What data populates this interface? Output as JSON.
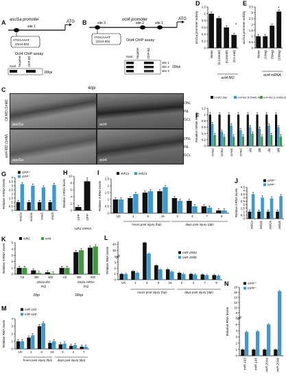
{
  "panelA": {
    "letter": "A",
    "promoter": "ascl1a promoter",
    "site": "site 1",
    "atg": "ATG",
    "bs1": "ATGCAAAT",
    "bs2": "(Oct4-BS)",
    "assay": "Oct4 ChIP assay",
    "lanes": [
      "Input",
      "Negative",
      "ChIP-BS"
    ],
    "time": "16hpi"
  },
  "panelB": {
    "letter": "B",
    "promoter": "oct4 promoter",
    "sites": [
      "site 3",
      "site 2",
      "site 1"
    ],
    "atg": "ATG",
    "bs1": "ATGCAAAT",
    "bs2": "(Oct4-BS)",
    "assay": "Oct4 ChIP assay",
    "lanes": [
      "Input",
      "Negative",
      "ChIP-BS"
    ],
    "right_labels": [
      "site 1",
      "site 2",
      "site 3"
    ],
    "time": "16hpi"
  },
  "panelC": {
    "letter": "C",
    "time": "4dpi",
    "rows": [
      "Ctl MO (1mM)",
      "oct4 MO (1mM)"
    ],
    "images": [
      [
        "ascl1a",
        "oct4"
      ],
      [
        "ascl1a",
        "oct4"
      ]
    ],
    "layers": [
      "ONL",
      "INL",
      "GCL"
    ]
  },
  "panelD": {
    "letter": "D",
    "ylabel": "ascl1a promoter activity",
    "xtitle": "oct4 MO",
    "chart_data": {
      "type": "bar",
      "categories": [
        "Water",
        "(0.125mM)",
        "(0.25mM)",
        "(0.5 mM)"
      ],
      "values": [
        1.0,
        0.87,
        0.6,
        0.38
      ],
      "ylim": [
        0,
        1.2
      ],
      "yticks": [
        "0",
        "0.2",
        "0.4",
        "0.6",
        "0.8",
        "1",
        "1.2"
      ]
    }
  },
  "panelE": {
    "letter": "E",
    "ylabel": "ascl1a promoter activity",
    "xtitle": "oct4 mRNA",
    "chart_data": {
      "type": "bar",
      "categories": [
        "Water",
        "(10ng)",
        "(50ng)",
        "(100ng)"
      ],
      "values": [
        1.0,
        1.0,
        1.9,
        3.1
      ],
      "ylim": [
        0,
        3.5
      ],
      "yticks": [
        "0",
        "0.5",
        "1",
        "1.5",
        "2",
        "2.5",
        "3",
        "3.5"
      ]
    }
  },
  "panelF": {
    "letter": "F",
    "ylabel": "Relative mRNA levels",
    "legend": [
      "Ctl MO-2dpi",
      "oct4 MO (0.5mM)-2dpi",
      "oct4 MO (1.0mM)-2dpi"
    ],
    "chart_data": {
      "type": "bar",
      "categories": [
        "ccna1",
        "ccnb1",
        "ccnd1",
        "ccne1",
        "dla",
        "dlb",
        "dlc",
        "dld"
      ],
      "series": [
        {
          "name": "Ctl MO-2dpi",
          "values": [
            1,
            1,
            1,
            1,
            1,
            1,
            1,
            1
          ]
        },
        {
          "name": "oct4 MO (0.5mM)-2dpi",
          "values": [
            0.7,
            0.45,
            0.65,
            0.5,
            0.6,
            0.55,
            0.65,
            0.6
          ]
        },
        {
          "name": "oct4 MO (1.0mM)-2dpi",
          "values": [
            0.35,
            0.3,
            0.3,
            0.3,
            0.4,
            0.3,
            0.35,
            0.3
          ]
        }
      ],
      "ylim": [
        0,
        1.2
      ],
      "yticks": [
        "0",
        "0.2",
        "0.4",
        "0.6",
        "0.8",
        "1",
        "1.2"
      ]
    }
  },
  "panelG": {
    "letter": "G",
    "ylabel": "Relative mRNA levels",
    "legend": [
      "GFP⁺",
      "GFP⁻"
    ],
    "chart_data": {
      "type": "bar",
      "categories": [
        "snai1a",
        "snai1b",
        "snai2",
        "snai3"
      ],
      "series": [
        {
          "name": "GFP⁺",
          "values": [
            1,
            1,
            1,
            1
          ]
        },
        {
          "name": "GFP⁻",
          "values": [
            3.2,
            3.0,
            2.8,
            3.1
          ]
        }
      ],
      "ylim": [
        0,
        4
      ],
      "yticks": [
        "0",
        "0.5",
        "1",
        "1.5",
        "2",
        "2.5",
        "3",
        "3.5",
        "4"
      ]
    }
  },
  "panelH": {
    "letter": "H",
    "ylabel": "Relative mRNA levels",
    "xtitle": "cdh1 mRNA",
    "chart_data": {
      "type": "bar",
      "categories": [
        "GFP⁻",
        "GFP⁺"
      ],
      "values": [
        1,
        8.5
      ],
      "ylim": [
        0,
        10
      ],
      "yticks": [
        "0",
        "2",
        "4",
        "6",
        "8",
        "10"
      ]
    }
  },
  "panelI": {
    "letter": "I",
    "ylabel": "Relative mRNA levels",
    "legend": [
      "zeb1a",
      "zeb2a"
    ],
    "xgroups": [
      "hours post injury (hpi)",
      "days post injury (dpi)"
    ],
    "chart_data": {
      "type": "bar",
      "categories": [
        "UC",
        "1",
        "6",
        "16",
        "2",
        "4",
        "7",
        "9"
      ],
      "series": [
        {
          "name": "zeb1a",
          "values": [
            1,
            1.1,
            1.5,
            1.6,
            1.1,
            0.9,
            0.5,
            0.2
          ]
        },
        {
          "name": "zeb2a",
          "values": [
            1,
            1.4,
            1.6,
            1.9,
            0.9,
            0.5,
            0.4,
            0.2
          ]
        }
      ],
      "ylim": [
        0,
        2.5
      ],
      "yticks": [
        "0",
        "0.5",
        "1",
        "1.5",
        "2",
        "2.5"
      ]
    }
  },
  "panelJ": {
    "letter": "J",
    "ylabel": "Relative mRNA levels",
    "legend": [
      "GFP⁺",
      "GFP⁻"
    ],
    "chart_data": {
      "type": "bar",
      "categories": [
        "zeb1a",
        "zeb1b",
        "zeb2a",
        "zeb2b"
      ],
      "series": [
        {
          "name": "GFP⁺",
          "values": [
            1,
            1,
            1,
            1
          ]
        },
        {
          "name": "GFP⁻",
          "values": [
            3.5,
            3.0,
            2.9,
            3.2
          ]
        }
      ],
      "ylim": [
        0,
        4.5
      ],
      "yticks": [
        "0",
        "0.5",
        "1",
        "1.5",
        "2",
        "2.5",
        "3",
        "3.5",
        "4",
        "4.5"
      ]
    }
  },
  "panelK": {
    "letter": "K",
    "ylabel": "Relative mRNA levels",
    "legend": [
      "cdh1",
      "oct4"
    ],
    "xlabels": [
      "Ctl",
      "zeb2a MO",
      "Ctl",
      "zeb2a mRNA"
    ],
    "dose_labels": [
      "300",
      "600",
      "300",
      "600"
    ],
    "dose_unit": "(ng)",
    "times": [
      "2dpi",
      "16hpi"
    ],
    "chart_data": {
      "type": "bar",
      "categories": [
        "2dpi Ctl",
        "2dpi zeb2a MO 300",
        "2dpi zeb2a MO 600",
        "16hpi Ctl",
        "16hpi zeb2a mRNA 300",
        "16hpi zeb2a mRNA 600"
      ],
      "series": [
        {
          "name": "cdh1",
          "values": [
            1,
            0.6,
            0.3,
            1,
            3.5,
            4.2
          ]
        },
        {
          "name": "oct4",
          "values": [
            1,
            0.2,
            0.1,
            1,
            3.8,
            4.4
          ]
        }
      ],
      "ylim": [
        0,
        5
      ],
      "yticks": [
        "0",
        "1",
        "2",
        "3",
        "4",
        "5"
      ]
    }
  },
  "panelL": {
    "letter": "L",
    "ylabel": "Relative RNA levels",
    "legend": [
      "miR-200a",
      "miR-200b"
    ],
    "xgroups": [
      "hours post injury (hpi)",
      "days post injury (dpi)"
    ],
    "chart_data": {
      "type": "bar",
      "categories": [
        "UC",
        "1",
        "3",
        "6",
        "16",
        "2",
        "4",
        "7",
        "9"
      ],
      "series": [
        {
          "name": "miR-200a",
          "values": [
            1,
            1.5,
            43,
            2.5,
            1.8,
            1.2,
            1.0,
            0.9,
            0.8
          ]
        },
        {
          "name": "miR-200b",
          "values": [
            1,
            1.2,
            25,
            1.8,
            1.4,
            1.0,
            0.9,
            0.8,
            0.7
          ]
        }
      ],
      "ylim": [
        0,
        45
      ],
      "yticks": [
        "0",
        "1",
        "2",
        "3",
        "4",
        "30",
        "40"
      ]
    }
  },
  "panelM": {
    "letter": "M",
    "ylabel": "Relative RNA levels",
    "legend": [
      "miR-143",
      "miR-145"
    ],
    "xgroups": [
      "hours post injury (hpi)",
      "days post injury (dpi)"
    ],
    "chart_data": {
      "type": "bar",
      "categories": [
        "UC",
        "1",
        "3",
        "16",
        "2",
        "4",
        "7"
      ],
      "series": [
        {
          "name": "miR-143",
          "values": [
            1,
            1.5,
            3.0,
            0.8,
            0.6,
            0.4,
            0.3
          ]
        },
        {
          "name": "miR-145",
          "values": [
            1,
            1.8,
            3.4,
            1.0,
            0.7,
            0.5,
            0.3
          ]
        }
      ],
      "ylim": [
        0,
        4
      ],
      "yticks": [
        "0",
        "1",
        "2",
        "3",
        "4"
      ]
    }
  },
  "panelN": {
    "letter": "N",
    "ylabel": "Relative RNA levels",
    "legend": [
      "GFP⁺",
      "GFP⁻"
    ],
    "chart_data": {
      "type": "bar",
      "categories": [
        "miR-143",
        "miR-145",
        "miR-200a",
        "miR-200b"
      ],
      "series": [
        {
          "name": "GFP⁺",
          "values": [
            1,
            1,
            1,
            1
          ]
        },
        {
          "name": "GFP⁻",
          "values": [
            3.8,
            3.9,
            5.0,
            16.5
          ]
        }
      ],
      "ylim": [
        0,
        18
      ],
      "yticks": [
        "0",
        "1",
        "2",
        "3",
        "4",
        "5",
        "6",
        "8",
        "10",
        "12",
        "14",
        "16",
        "18"
      ]
    }
  }
}
